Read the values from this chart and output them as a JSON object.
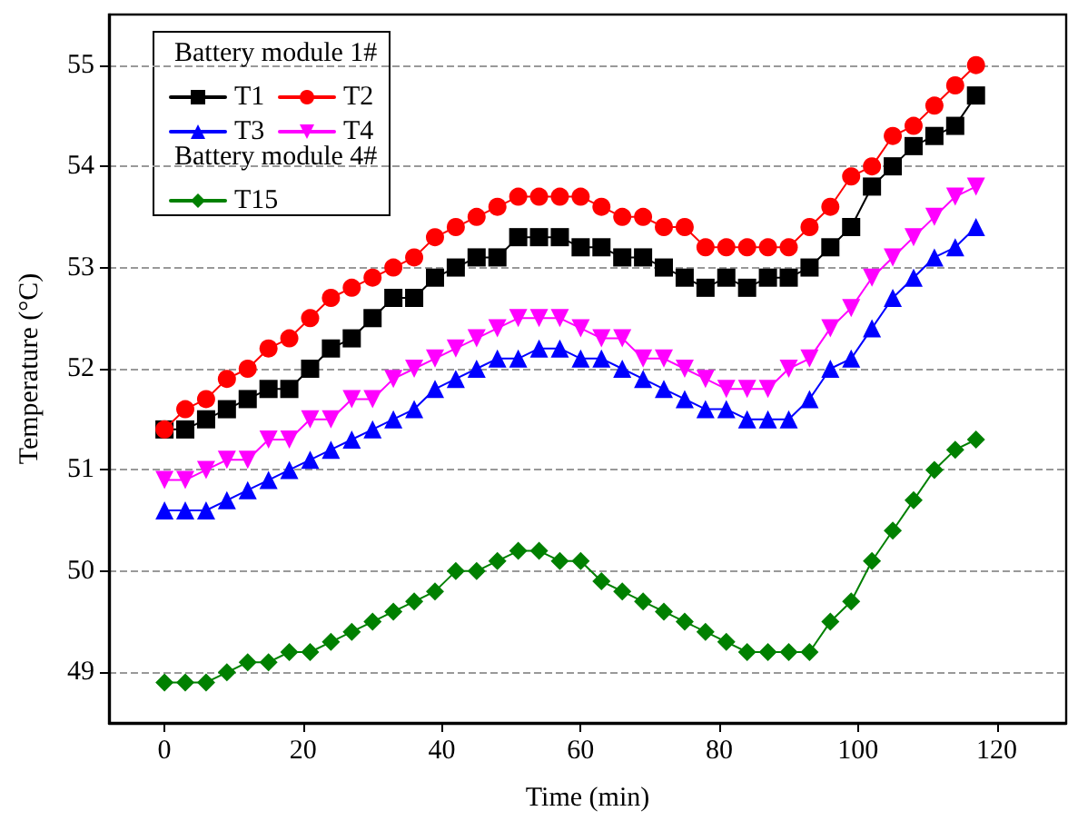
{
  "chart_data": {
    "type": "line",
    "xlabel": "Time (min)",
    "ylabel": "Temperature (°C)",
    "annotations": [
      "Battery module 1#",
      "Battery module 4#"
    ],
    "x": [
      0,
      3,
      6,
      9,
      12,
      15,
      18,
      21,
      24,
      27,
      30,
      33,
      36,
      39,
      42,
      45,
      48,
      51,
      54,
      57,
      60,
      63,
      66,
      69,
      72,
      75,
      78,
      81,
      84,
      87,
      90,
      93,
      96,
      99,
      102,
      105,
      108,
      111,
      114,
      117
    ],
    "series": [
      {
        "name": "T1",
        "color": "#000000",
        "marker": "square",
        "values": [
          51.4,
          51.4,
          51.5,
          51.6,
          51.7,
          51.8,
          51.8,
          52.0,
          52.2,
          52.3,
          52.5,
          52.7,
          52.7,
          52.9,
          53.0,
          53.1,
          53.1,
          53.3,
          53.3,
          53.3,
          53.2,
          53.2,
          53.1,
          53.1,
          53.0,
          52.9,
          52.8,
          52.9,
          52.8,
          52.9,
          52.9,
          53.0,
          53.2,
          53.4,
          53.8,
          54.0,
          54.2,
          54.3,
          54.4,
          54.7
        ]
      },
      {
        "name": "T2",
        "color": "#ff0000",
        "marker": "circle",
        "values": [
          51.4,
          51.6,
          51.7,
          51.9,
          52.0,
          52.2,
          52.3,
          52.5,
          52.7,
          52.8,
          52.9,
          53.0,
          53.1,
          53.3,
          53.4,
          53.5,
          53.6,
          53.7,
          53.7,
          53.7,
          53.7,
          53.6,
          53.5,
          53.5,
          53.4,
          53.4,
          53.2,
          53.2,
          53.2,
          53.2,
          53.2,
          53.4,
          53.6,
          53.9,
          54.0,
          54.3,
          54.4,
          54.6,
          54.8,
          55.0
        ]
      },
      {
        "name": "T3",
        "color": "#0000ff",
        "marker": "triangle",
        "values": [
          50.6,
          50.6,
          50.6,
          50.7,
          50.8,
          50.9,
          51.0,
          51.1,
          51.2,
          51.3,
          51.4,
          51.5,
          51.6,
          51.8,
          51.9,
          52.0,
          52.1,
          52.1,
          52.2,
          52.2,
          52.1,
          52.1,
          52.0,
          51.9,
          51.8,
          51.7,
          51.6,
          51.6,
          51.5,
          51.5,
          51.5,
          51.7,
          52.0,
          52.1,
          52.4,
          52.7,
          52.9,
          53.1,
          53.2,
          53.4
        ]
      },
      {
        "name": "T4",
        "color": "#ff00ff",
        "marker": "triangle-down",
        "values": [
          50.9,
          50.9,
          51.0,
          51.1,
          51.1,
          51.3,
          51.3,
          51.5,
          51.5,
          51.7,
          51.7,
          51.9,
          52.0,
          52.1,
          52.2,
          52.3,
          52.4,
          52.5,
          52.5,
          52.5,
          52.4,
          52.3,
          52.3,
          52.1,
          52.1,
          52.0,
          51.9,
          51.8,
          51.8,
          51.8,
          52.0,
          52.1,
          52.4,
          52.6,
          52.9,
          53.1,
          53.3,
          53.5,
          53.7,
          53.8
        ]
      },
      {
        "name": "T15",
        "color": "#008000",
        "marker": "diamond",
        "values": [
          48.9,
          48.9,
          48.9,
          49.0,
          49.1,
          49.1,
          49.2,
          49.2,
          49.3,
          49.4,
          49.5,
          49.6,
          49.7,
          49.8,
          50.0,
          50.0,
          50.1,
          50.2,
          50.2,
          50.1,
          50.1,
          49.9,
          49.8,
          49.7,
          49.6,
          49.5,
          49.4,
          49.3,
          49.2,
          49.2,
          49.2,
          49.2,
          49.5,
          49.7,
          50.1,
          50.4,
          50.7,
          51.0,
          51.2,
          51.3
        ]
      }
    ],
    "xlim": [
      -8,
      130
    ],
    "xticks": [
      0,
      20,
      40,
      60,
      80,
      100,
      120
    ],
    "ylim": [
      48.5,
      55.5
    ],
    "yticks": [
      49,
      50,
      51,
      52,
      53,
      54,
      55
    ],
    "grid": "y",
    "legend": "top left",
    "line_style": "solid"
  }
}
